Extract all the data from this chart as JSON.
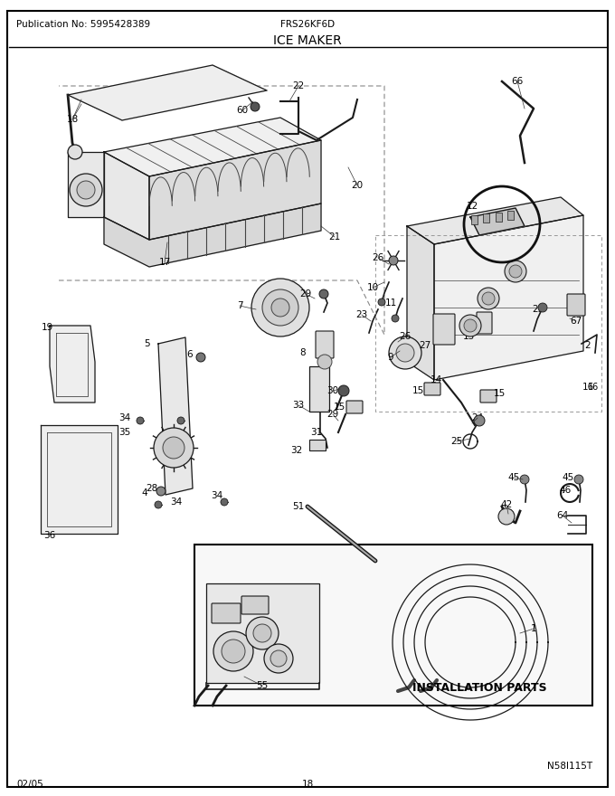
{
  "pub_no": "Publication No: 5995428389",
  "model": "FRS26KF6D",
  "title": "ICE MAKER",
  "date": "02/05",
  "page": "18",
  "diagram_id": "N58I115T",
  "install_parts_label": "INSTALLATION PARTS",
  "bg_color": "#ffffff",
  "border_color": "#000000",
  "text_color": "#000000",
  "fig_width": 6.8,
  "fig_height": 8.8,
  "dpi": 100
}
